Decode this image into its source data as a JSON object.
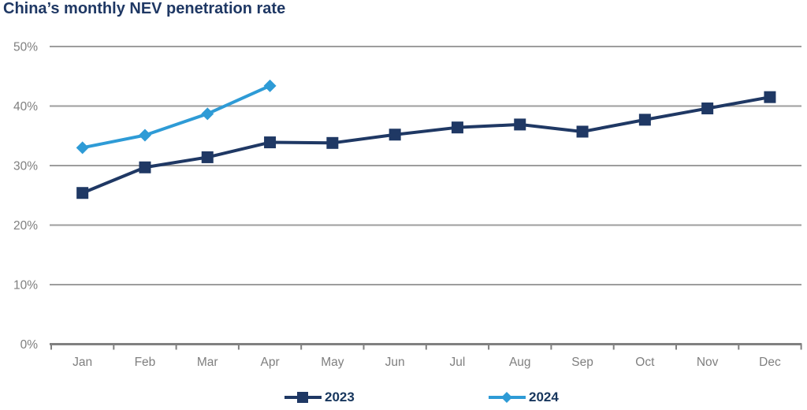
{
  "title": "China’s monthly NEV penetration rate",
  "colors": {
    "title_text": "#1f3864",
    "series_2023": "#1f3864",
    "series_2024": "#2e9bd6",
    "gridline": "#9d9d9d",
    "axis_line": "#808080",
    "tick_label": "#7f7f7f",
    "legend_text": "#17365d",
    "background": "#ffffff"
  },
  "chart_data": {
    "type": "line",
    "title": "China’s monthly NEV penetration rate",
    "categories": [
      "Jan",
      "Feb",
      "Mar",
      "Apr",
      "May",
      "Jun",
      "Jul",
      "Aug",
      "Sep",
      "Oct",
      "Nov",
      "Dec"
    ],
    "series": [
      {
        "name": "2023",
        "marker": "square",
        "color": "#1f3864",
        "values": [
          25.4,
          29.7,
          31.4,
          33.9,
          33.8,
          35.2,
          36.4,
          36.9,
          35.7,
          37.7,
          39.6,
          41.5
        ]
      },
      {
        "name": "2024",
        "marker": "diamond",
        "color": "#2e9bd6",
        "values": [
          33.0,
          35.1,
          38.7,
          43.4
        ]
      }
    ],
    "xlabel": "",
    "ylabel": "",
    "ylim": [
      0,
      50
    ],
    "ytick_step": 10,
    "ytick_labels": [
      "0%",
      "10%",
      "20%",
      "30%",
      "40%",
      "50%"
    ],
    "grid": true,
    "legend_position": "bottom"
  }
}
